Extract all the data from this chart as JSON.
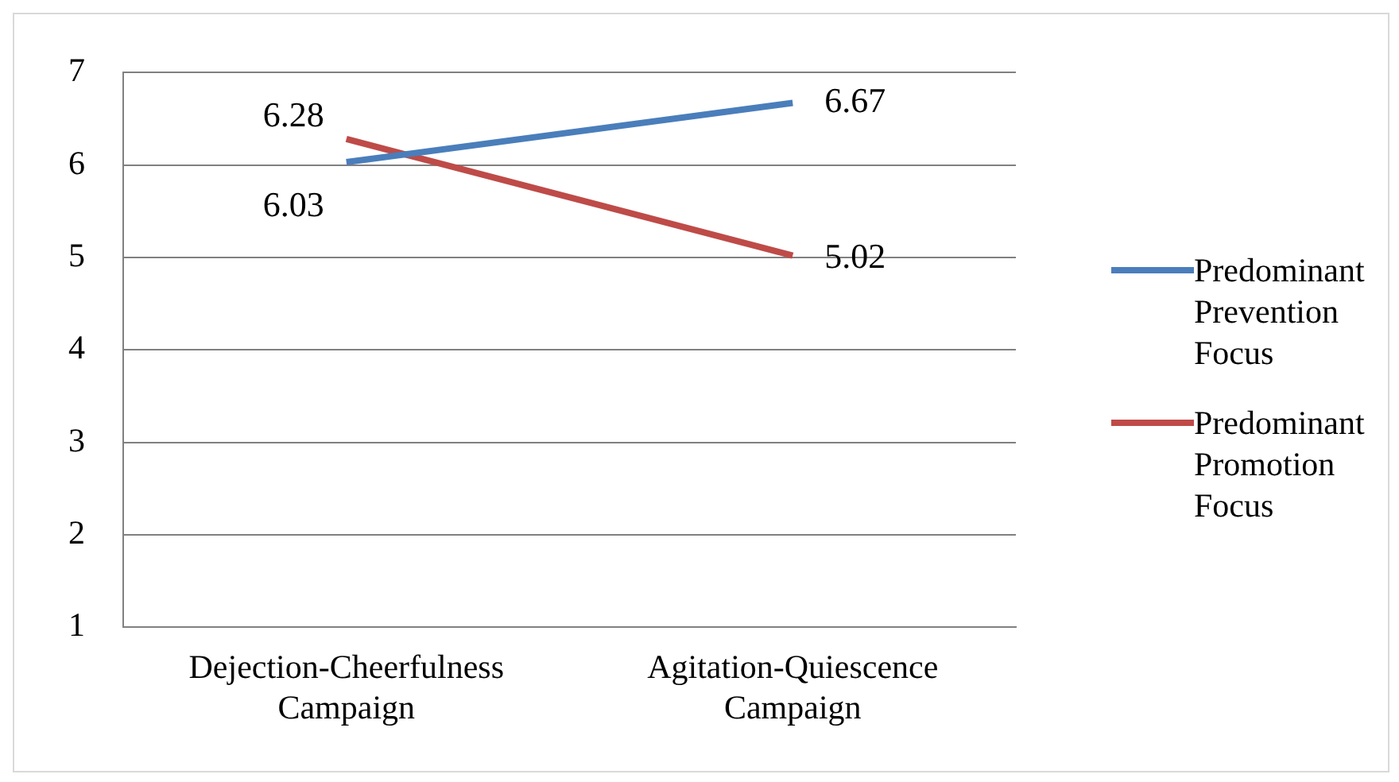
{
  "chart_data": {
    "type": "line",
    "categories": [
      "Dejection-Cheerfulness Campaign",
      "Agitation-Quiescence Campaign"
    ],
    "series": [
      {
        "name": "Predominant Prevention Focus",
        "color": "#4a7ebb",
        "values": [
          6.03,
          6.67
        ]
      },
      {
        "name": "Predominant Promotion Focus",
        "color": "#be4b48",
        "values": [
          6.28,
          5.02
        ]
      }
    ],
    "ylim": [
      1,
      7
    ],
    "yticks": [
      1,
      2,
      3,
      4,
      5,
      6,
      7
    ],
    "grid": "y",
    "legend": "right",
    "data_labels": true,
    "marker": "none"
  }
}
